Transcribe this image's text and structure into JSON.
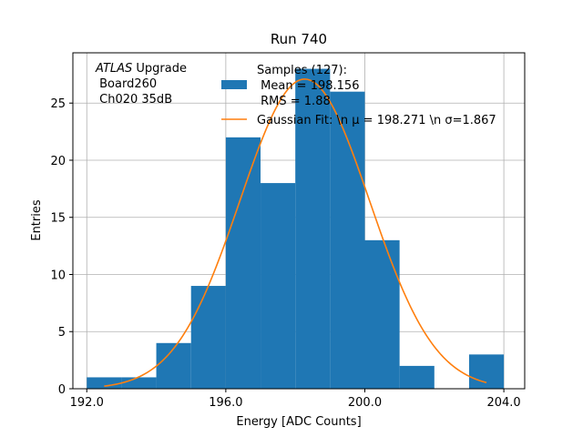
{
  "chart_data": {
    "type": "bar",
    "title": "Run 740",
    "xlabel": "Energy [ADC Counts]",
    "ylabel": "Entries",
    "xlim": [
      191.6,
      204.6
    ],
    "ylim": [
      0,
      29.4
    ],
    "grid": true,
    "x_ticks": [
      192.0,
      196.0,
      200.0,
      204.0
    ],
    "x_tick_labels": [
      "192.0",
      "196.0",
      "200.0",
      "204.0"
    ],
    "y_ticks": [
      0,
      5,
      10,
      15,
      20,
      25
    ],
    "y_tick_labels": [
      "0",
      "5",
      "10",
      "15",
      "20",
      "25"
    ],
    "bin_edges": [
      192,
      193,
      194,
      195,
      196,
      197,
      198,
      199,
      200,
      201,
      202,
      203,
      204
    ],
    "counts": [
      1,
      1,
      4,
      9,
      22,
      18,
      28,
      26,
      13,
      2,
      0,
      3
    ],
    "bar_color": "#1f77b4",
    "series": [
      {
        "name": "Samples (127):\n Mean = 198.156\n RMS = 1.88",
        "kind": "histogram",
        "color": "#1f77b4"
      },
      {
        "name": "Gaussian Fit: \\n $\\mu$ = 198.271 \\n $\\sigma$=1.867",
        "kind": "line",
        "color": "#ff7f0e",
        "amplitude": 27.1,
        "mu": 198.271,
        "sigma": 1.867,
        "x_range": [
          192.5,
          203.5
        ]
      }
    ],
    "legend": {
      "placement": "upper-center",
      "entries": [
        {
          "lines": [
            "Samples (127):",
            " Mean = 198.156",
            " RMS = 1.88"
          ],
          "color": "#1f77b4",
          "kind": "patch"
        },
        {
          "lines": [
            "Gaussian Fit: \\n μ = 198.271 \\n σ=1.867"
          ],
          "color": "#ff7f0e",
          "kind": "line"
        }
      ]
    },
    "annotation": {
      "lines": [
        "ATLAS Upgrade",
        " Board260",
        " Ch020 35dB"
      ],
      "italic_word": "ATLAS",
      "placement": "top-left"
    }
  }
}
